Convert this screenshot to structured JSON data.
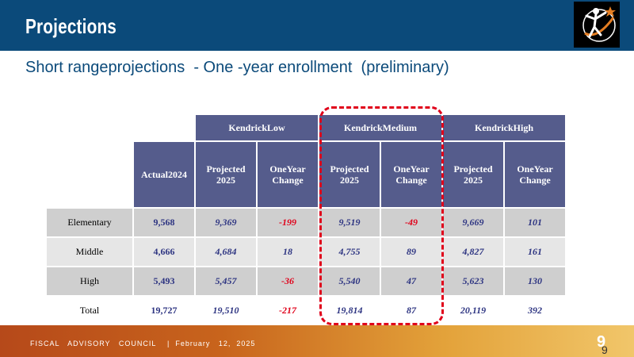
{
  "header": {
    "title": "Projections"
  },
  "subtitle": "Short rangeprojections  - One -year enrollment  (preliminary)",
  "table": {
    "groups": [
      "KendrickLow",
      "KendrickMedium",
      "KendrickHigh"
    ],
    "columns": [
      "Actual2024",
      "Projected 2025",
      "OneYear Change",
      "Projected 2025",
      "OneYear Change",
      "Projected 2025",
      "OneYear Change"
    ],
    "rows": [
      {
        "label": "Elementary",
        "values": [
          "9,568",
          "9,369",
          "-199",
          "9,519",
          "-49",
          "9,669",
          "101"
        ]
      },
      {
        "label": "Middle",
        "values": [
          "4,666",
          "4,684",
          "18",
          "4,755",
          "89",
          "4,827",
          "161"
        ]
      },
      {
        "label": "High",
        "values": [
          "5,493",
          "5,457",
          "-36",
          "5,540",
          "47",
          "5,623",
          "130"
        ]
      },
      {
        "label": "Total",
        "values": [
          "19,727",
          "19,510",
          "-217",
          "19,814",
          "87",
          "20,119",
          "392"
        ]
      }
    ]
  },
  "footer": {
    "text": "FISCAL   ADVISORY   COUNCIL    |  February   12,  2025",
    "page": "9",
    "page_small": "9"
  },
  "colors": {
    "header_bar": "#0b4a7a",
    "table_header": "#555c8c",
    "negative": "#e0001a",
    "positive": "#2e3582",
    "highlight": "#e0001a"
  },
  "icons": {
    "logo": "star-figure-logo-icon"
  }
}
